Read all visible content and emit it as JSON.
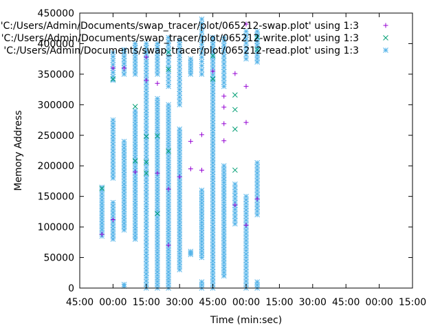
{
  "chart_data": {
    "type": "scatter",
    "xlabel": "Time (min:sec)",
    "ylabel": "Memory Address",
    "x_unit": "seconds",
    "xlim": [
      2700,
      4500
    ],
    "ylim": [
      0,
      450000
    ],
    "x_ticks": [
      {
        "value": 2700,
        "label": "45:00"
      },
      {
        "value": 2880,
        "label": "00:00"
      },
      {
        "value": 3060,
        "label": "15:00"
      },
      {
        "value": 3240,
        "label": "30:00"
      },
      {
        "value": 3420,
        "label": "45:00"
      },
      {
        "value": 3600,
        "label": "00:00"
      },
      {
        "value": 3780,
        "label": "15:00"
      },
      {
        "value": 3960,
        "label": "30:00"
      },
      {
        "value": 4140,
        "label": "45:00"
      },
      {
        "value": 4320,
        "label": "00:00"
      },
      {
        "value": 4500,
        "label": "15:00"
      }
    ],
    "y_ticks": [
      {
        "value": 0,
        "label": "0"
      },
      {
        "value": 50000,
        "label": "50000"
      },
      {
        "value": 100000,
        "label": "100000"
      },
      {
        "value": 150000,
        "label": "150000"
      },
      {
        "value": 200000,
        "label": "200000"
      },
      {
        "value": 250000,
        "label": "250000"
      },
      {
        "value": 300000,
        "label": "300000"
      },
      {
        "value": 350000,
        "label": "350000"
      },
      {
        "value": 400000,
        "label": "400000"
      },
      {
        "value": 450000,
        "label": "450000"
      }
    ],
    "legend_position": "top-right",
    "series": [
      {
        "name": "'C:/Users/Admin/Documents/swap_tracer/plot/065212-swap.plot' using 1:3",
        "color": "#9400d3",
        "marker": "plus",
        "points": [
          [
            2820,
            88000
          ],
          [
            2880,
            360000
          ],
          [
            2880,
            112000
          ],
          [
            2940,
            360000
          ],
          [
            3000,
            190000
          ],
          [
            3060,
            378000
          ],
          [
            3060,
            340000
          ],
          [
            3120,
            335000
          ],
          [
            3180,
            162000
          ],
          [
            3180,
            70000
          ],
          [
            3300,
            240000
          ],
          [
            3300,
            195000
          ],
          [
            3360,
            251000
          ],
          [
            3360,
            193000
          ],
          [
            3420,
            355000
          ],
          [
            3480,
            314000
          ],
          [
            3480,
            296000
          ],
          [
            3480,
            269000
          ],
          [
            3480,
            241000
          ],
          [
            3540,
            351000
          ],
          [
            3600,
            432000
          ],
          [
            3600,
            330000
          ],
          [
            3600,
            271000
          ],
          [
            3600,
            103000
          ],
          [
            3660,
            146000
          ],
          [
            3240,
            182000
          ],
          [
            3120,
            188000
          ],
          [
            3540,
            136000
          ]
        ]
      },
      {
        "name": "'C:/Users/Admin/Documents/swap_tracer/plot/065212-write.plot' using 1:3",
        "color": "#009e73",
        "marker": "cross",
        "points": [
          [
            2820,
            163000
          ],
          [
            2880,
            342000
          ],
          [
            3000,
            208000
          ],
          [
            3000,
            297000
          ],
          [
            3060,
            248000
          ],
          [
            3060,
            206000
          ],
          [
            3060,
            188000
          ],
          [
            3120,
            249000
          ],
          [
            3120,
            122000
          ],
          [
            3180,
            386000
          ],
          [
            3180,
            358000
          ],
          [
            3180,
            224000
          ],
          [
            3420,
            380000
          ],
          [
            3420,
            342000
          ],
          [
            3540,
            316000
          ],
          [
            3540,
            292000
          ],
          [
            3540,
            260000
          ],
          [
            3540,
            193000
          ],
          [
            3660,
            411000
          ],
          [
            3660,
            390000
          ]
        ]
      },
      {
        "name": "'C:/Users/Admin/Documents/swap_tracer/plot/065212-read.plot' using 1:3",
        "color": "#56b4e9",
        "marker": "star",
        "columns": [
          {
            "x": 2820,
            "y0": 85000,
            "y1": 165000,
            "n": 16
          },
          {
            "x": 2880,
            "y0": 80000,
            "y1": 140000,
            "n": 12
          },
          {
            "x": 2880,
            "y0": 180000,
            "y1": 275000,
            "n": 18
          },
          {
            "x": 2880,
            "y0": 340000,
            "y1": 385000,
            "n": 8
          },
          {
            "x": 2940,
            "y0": 95000,
            "y1": 240000,
            "n": 28
          },
          {
            "x": 2940,
            "y0": 350000,
            "y1": 390000,
            "n": 8
          },
          {
            "x": 2940,
            "y0": 3000,
            "y1": 6000,
            "n": 2
          },
          {
            "x": 3000,
            "y0": 80000,
            "y1": 290000,
            "n": 40
          },
          {
            "x": 3000,
            "y0": 350000,
            "y1": 400000,
            "n": 10
          },
          {
            "x": 3060,
            "y0": 0,
            "y1": 400000,
            "n": 70
          },
          {
            "x": 3120,
            "y0": 0,
            "y1": 310000,
            "n": 60
          },
          {
            "x": 3120,
            "y0": 350000,
            "y1": 400000,
            "n": 10
          },
          {
            "x": 3180,
            "y0": 0,
            "y1": 300000,
            "n": 58
          },
          {
            "x": 3180,
            "y0": 330000,
            "y1": 410000,
            "n": 14
          },
          {
            "x": 3240,
            "y0": 30000,
            "y1": 260000,
            "n": 44
          },
          {
            "x": 3240,
            "y0": 300000,
            "y1": 405000,
            "n": 18
          },
          {
            "x": 3300,
            "y0": 55000,
            "y1": 60000,
            "n": 3
          },
          {
            "x": 3300,
            "y0": 350000,
            "y1": 375000,
            "n": 6
          },
          {
            "x": 3360,
            "y0": 0,
            "y1": 10000,
            "n": 3
          },
          {
            "x": 3360,
            "y0": 50000,
            "y1": 160000,
            "n": 22
          },
          {
            "x": 3360,
            "y0": 350000,
            "y1": 440000,
            "n": 14
          },
          {
            "x": 3420,
            "y0": 0,
            "y1": 410000,
            "n": 75
          },
          {
            "x": 3480,
            "y0": 20000,
            "y1": 200000,
            "n": 34
          },
          {
            "x": 3480,
            "y0": 330000,
            "y1": 410000,
            "n": 14
          },
          {
            "x": 3540,
            "y0": 105000,
            "y1": 170000,
            "n": 12
          },
          {
            "x": 3600,
            "y0": 0,
            "y1": 150000,
            "n": 28
          },
          {
            "x": 3600,
            "y0": 375000,
            "y1": 420000,
            "n": 8
          },
          {
            "x": 3660,
            "y0": 0,
            "y1": 10000,
            "n": 3
          },
          {
            "x": 3660,
            "y0": 120000,
            "y1": 205000,
            "n": 16
          },
          {
            "x": 3660,
            "y0": 370000,
            "y1": 420000,
            "n": 10
          }
        ]
      }
    ]
  }
}
